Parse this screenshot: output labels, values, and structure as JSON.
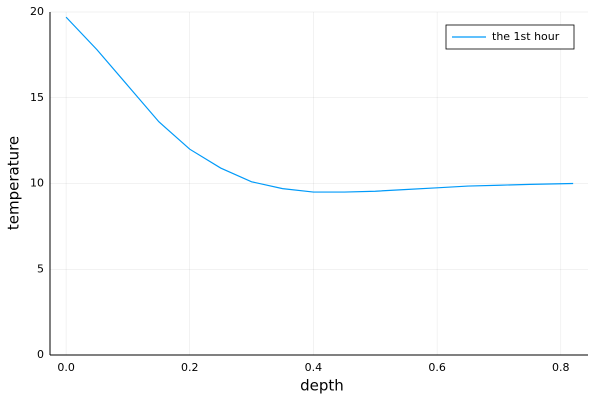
{
  "chart_data": {
    "type": "line",
    "x_label": "depth",
    "y_label": "temperature",
    "x": [
      0,
      0.05,
      0.1,
      0.15,
      0.2,
      0.25,
      0.3,
      0.35,
      0.4,
      0.45,
      0.5,
      0.55,
      0.6,
      0.65,
      0.7,
      0.75,
      0.82
    ],
    "series": [
      {
        "name": "the 1st hour",
        "color": "#009af9",
        "values": [
          19.7,
          17.8,
          15.7,
          13.6,
          12.0,
          10.9,
          10.1,
          9.7,
          9.5,
          9.5,
          9.55,
          9.65,
          9.75,
          9.85,
          9.9,
          9.95,
          10.0
        ]
      }
    ],
    "xlim": [
      -0.026,
      0.844
    ],
    "ylim": [
      0,
      20
    ],
    "xticks": [
      {
        "value": 0,
        "label": "0.0"
      },
      0.2,
      0.4,
      0.6,
      0.8
    ],
    "yticks": [
      0,
      5,
      10,
      15,
      20
    ],
    "grid": true,
    "legend": "top-right"
  }
}
